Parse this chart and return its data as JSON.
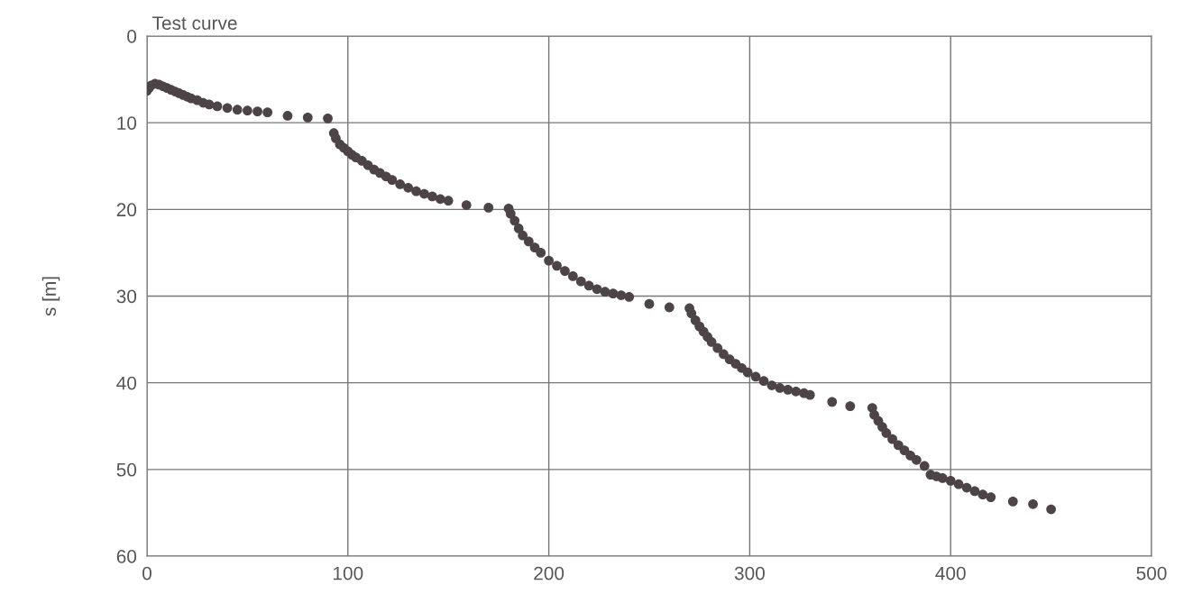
{
  "chart_data": {
    "type": "scatter",
    "title": "Test curve",
    "ylabel": "s [m]",
    "x": [
      0,
      1,
      2,
      4,
      6,
      8,
      10,
      12,
      14,
      16,
      18,
      20,
      22,
      25,
      28,
      31,
      35,
      40,
      45,
      50,
      55,
      60,
      70,
      80,
      90,
      93,
      94,
      96,
      98,
      100,
      102,
      104,
      107,
      110,
      113,
      116,
      119,
      122,
      126,
      130,
      134,
      138,
      142,
      146,
      150,
      159,
      170,
      180,
      181,
      183,
      185,
      187,
      190,
      193,
      196,
      200,
      204,
      208,
      212,
      216,
      220,
      224,
      228,
      232,
      236,
      240,
      250,
      260,
      270,
      271,
      273,
      275,
      277,
      279,
      281,
      284,
      287,
      290,
      293,
      296,
      299,
      303,
      307,
      311,
      315,
      319,
      323,
      327,
      330,
      341,
      350,
      361,
      362,
      364,
      366,
      368,
      371,
      374,
      377,
      380,
      383,
      387,
      390,
      393,
      396,
      400,
      404,
      408,
      412,
      416,
      420,
      431,
      441,
      450
    ],
    "series": [
      {
        "color": "#4d4448",
        "values": [
          6.3,
          6.0,
          5.7,
          5.5,
          5.6,
          5.8,
          6.0,
          6.2,
          6.4,
          6.6,
          6.8,
          7.0,
          7.2,
          7.4,
          7.7,
          7.9,
          8.1,
          8.3,
          8.5,
          8.6,
          8.7,
          8.8,
          9.2,
          9.4,
          9.5,
          11.2,
          11.8,
          12.5,
          12.9,
          13.3,
          13.7,
          14.0,
          14.4,
          14.9,
          15.4,
          15.8,
          16.2,
          16.6,
          17.1,
          17.5,
          17.9,
          18.2,
          18.5,
          18.8,
          19.0,
          19.5,
          19.8,
          19.9,
          20.5,
          21.3,
          22.2,
          23.0,
          23.7,
          24.4,
          25.0,
          25.9,
          26.5,
          27.1,
          27.7,
          28.3,
          28.8,
          29.2,
          29.5,
          29.7,
          29.9,
          30.1,
          30.9,
          31.3,
          31.4,
          32.0,
          32.8,
          33.5,
          34.1,
          34.7,
          35.3,
          36.0,
          36.7,
          37.3,
          37.8,
          38.3,
          38.8,
          39.3,
          39.8,
          40.3,
          40.6,
          40.8,
          41.0,
          41.2,
          41.4,
          42.2,
          42.7,
          42.9,
          43.7,
          44.4,
          45.1,
          45.8,
          46.5,
          47.2,
          47.8,
          48.4,
          48.9,
          49.6,
          50.6,
          50.8,
          51.0,
          51.3,
          51.7,
          52.1,
          52.5,
          52.9,
          53.2,
          53.7,
          54.0,
          54.6
        ]
      }
    ],
    "xlim": [
      0,
      500
    ],
    "xticks": [
      0,
      100,
      200,
      300,
      400,
      500
    ],
    "ylim": [
      60,
      0
    ],
    "yticks": [
      0,
      10,
      20,
      30,
      40,
      50,
      60
    ],
    "grid": true,
    "marker": "circle"
  }
}
